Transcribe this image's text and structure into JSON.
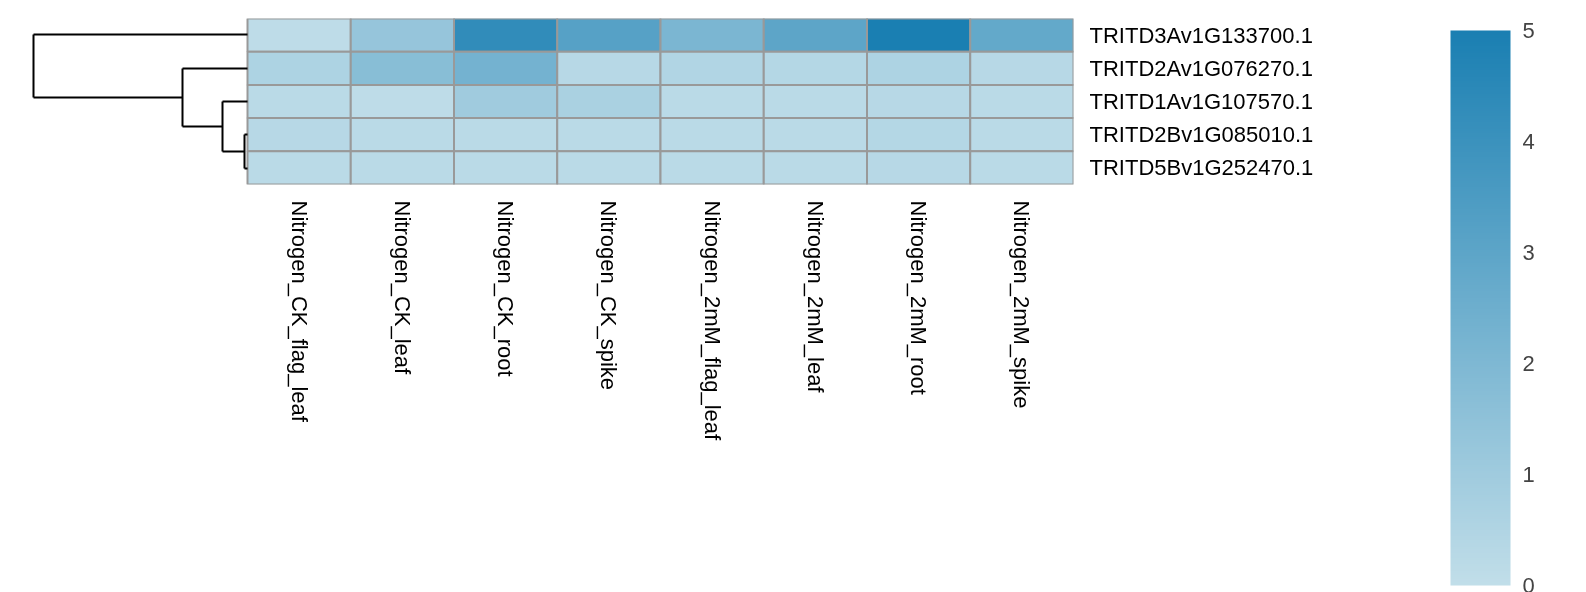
{
  "chart_data": {
    "type": "heatmap",
    "categories": [
      "Nitrogen_CK_flag_leaf",
      "Nitrogen_CK_leaf",
      "Nitrogen_CK_root",
      "Nitrogen_CK_spike",
      "Nitrogen_2mM_flag_leaf",
      "Nitrogen_2mM_leaf",
      "Nitrogen_2mM_root",
      "Nitrogen_2mM_spike"
    ],
    "y_categories": [
      "TRITD3Av1G133700.1",
      "TRITD2Av1G076270.1",
      "TRITD1Av1G107570.1",
      "TRITD2Bv1G085010.1",
      "TRITD5Bv1G252470.1"
    ],
    "cells": [
      [
        0.1,
        1.3,
        4.3,
        3.2,
        2.1,
        3.0,
        5.0,
        2.8
      ],
      [
        0.6,
        1.7,
        2.3,
        0.3,
        0.5,
        0.4,
        0.6,
        0.3
      ],
      [
        0.2,
        0.1,
        1.0,
        0.7,
        0.2,
        0.2,
        0.3,
        0.2
      ],
      [
        0.3,
        0.2,
        0.2,
        0.2,
        0.2,
        0.2,
        0.4,
        0.2
      ],
      [
        0.2,
        0.2,
        0.2,
        0.2,
        0.2,
        0.2,
        0.3,
        0.2
      ]
    ],
    "colors": [
      "#c1dee9",
      "#1a7fb2"
    ],
    "clim": [
      0,
      5
    ],
    "cticks": [
      0,
      1,
      2,
      3,
      4,
      5
    ]
  }
}
